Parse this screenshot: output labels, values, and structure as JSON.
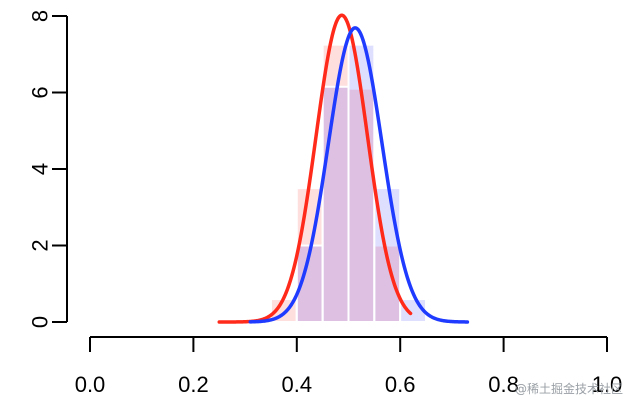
{
  "chart_data": {
    "type": "bar",
    "title": "",
    "xlabel": "",
    "ylabel": "",
    "xlim": [
      0,
      1
    ],
    "ylim": [
      0,
      8
    ],
    "x_ticks": [
      "0.0",
      "0.2",
      "0.4",
      "0.6",
      "0.8",
      "1.0"
    ],
    "y_ticks": [
      "0",
      "2",
      "4",
      "6",
      "8"
    ],
    "bin_width": 0.05,
    "histograms": [
      {
        "color": "#ff0000",
        "fill": "rgba(255,0,0,0.13)",
        "bins": [
          {
            "x0": 0.35,
            "x1": 0.4,
            "density": 0.6
          },
          {
            "x0": 0.4,
            "x1": 0.45,
            "density": 3.5
          },
          {
            "x0": 0.45,
            "x1": 0.5,
            "density": 7.25
          },
          {
            "x0": 0.5,
            "x1": 0.55,
            "density": 6.1
          },
          {
            "x0": 0.55,
            "x1": 0.6,
            "density": 2.0
          }
        ]
      },
      {
        "color": "#0000ff",
        "fill": "rgba(0,0,255,0.13)",
        "bins": [
          {
            "x0": 0.4,
            "x1": 0.45,
            "density": 2.0
          },
          {
            "x0": 0.45,
            "x1": 0.5,
            "density": 6.15
          },
          {
            "x0": 0.5,
            "x1": 0.55,
            "density": 7.25
          },
          {
            "x0": 0.55,
            "x1": 0.6,
            "density": 3.5
          },
          {
            "x0": 0.6,
            "x1": 0.65,
            "density": 0.6
          }
        ]
      }
    ],
    "density_curves": [
      {
        "color": "#ff2a1a",
        "mean": 0.487,
        "sd": 0.0497,
        "peak": 8.02,
        "from": 0.25,
        "to": 0.62
      },
      {
        "color": "#1f3bff",
        "mean": 0.513,
        "sd": 0.0519,
        "peak": 7.69,
        "from": 0.31,
        "to": 0.73
      }
    ],
    "grid": false,
    "legend": "none"
  },
  "watermark": "@稀土掘金技术社区"
}
